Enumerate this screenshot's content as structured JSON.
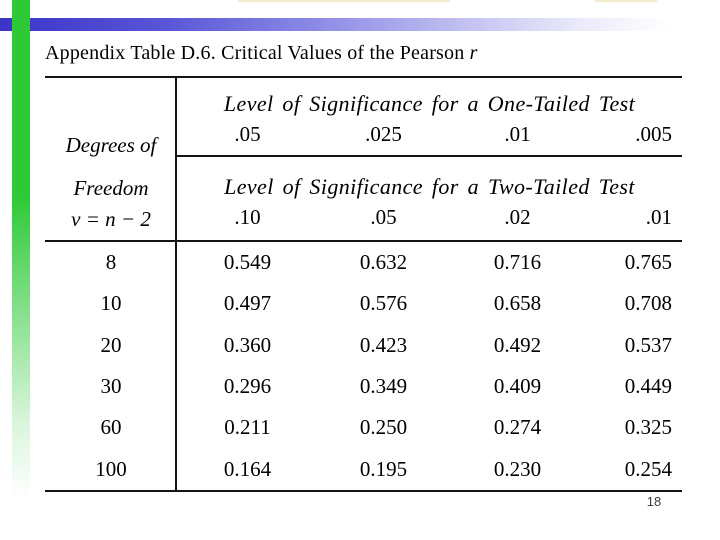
{
  "slide": {
    "title_text": "Appendix Table D.6. Critical Values of the Pearson ",
    "title_emphasis": "r",
    "page_number": "18"
  },
  "table": {
    "row_header_lines": [
      "Degrees of",
      "Freedom",
      "ν = n − 2"
    ],
    "one_tailed": {
      "header": "Level of Significance for a One-Tailed Test",
      "levels": [
        ".05",
        ".025",
        ".01",
        ".005"
      ]
    },
    "two_tailed": {
      "header": "Level of Significance for a Two-Tailed Test",
      "levels": [
        ".10",
        ".05",
        ".02",
        ".01"
      ]
    },
    "rows": [
      {
        "df": "8",
        "values": [
          "0.549",
          "0.632",
          "0.716",
          "0.765"
        ]
      },
      {
        "df": "10",
        "values": [
          "0.497",
          "0.576",
          "0.658",
          "0.708"
        ]
      },
      {
        "df": "20",
        "values": [
          "0.360",
          "0.423",
          "0.492",
          "0.537"
        ]
      },
      {
        "df": "30",
        "values": [
          "0.296",
          "0.349",
          "0.409",
          "0.449"
        ]
      },
      {
        "df": "60",
        "values": [
          "0.211",
          "0.250",
          "0.274",
          "0.325"
        ]
      },
      {
        "df": "100",
        "values": [
          "0.164",
          "0.195",
          "0.230",
          "0.254"
        ]
      }
    ]
  },
  "colors": {
    "accent_green": "#2dc937",
    "accent_blue": "#3a35c8",
    "table_line": "#141414",
    "page_number_gray": "#3d3d3d"
  }
}
